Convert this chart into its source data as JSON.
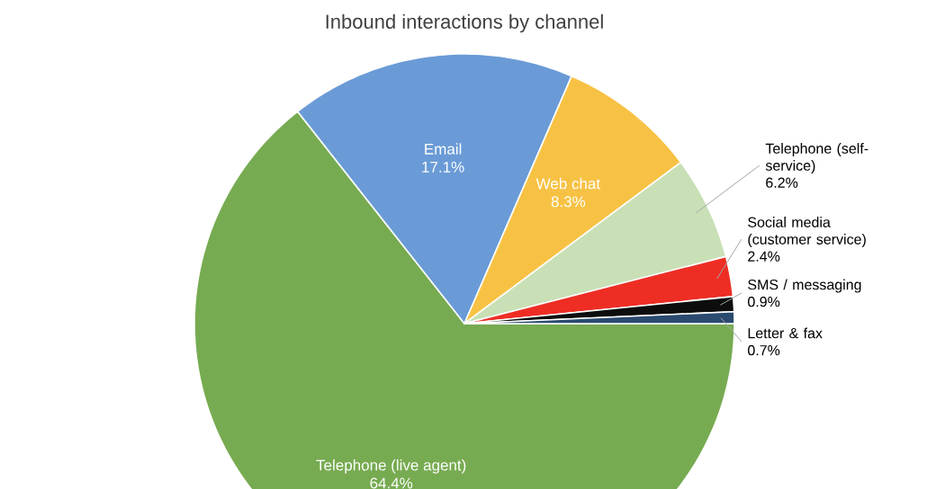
{
  "chart_data": {
    "type": "pie",
    "title": "Inbound interactions by channel",
    "categories": [
      "Telephone (live agent)",
      "Email",
      "Web chat",
      "Telephone (self-service)",
      "Social media (customer service)",
      "SMS / messaging",
      "Letter & fax"
    ],
    "values": [
      64.4,
      17.1,
      8.3,
      6.2,
      2.4,
      0.9,
      0.7
    ],
    "value_labels": [
      "64.4%",
      "17.1%",
      "8.3%",
      "6.2%",
      "2.4%",
      "0.9%",
      "0.7%"
    ],
    "colors": [
      "#77ab51",
      "#6a9bd6",
      "#f7c244",
      "#c9e0b6",
      "#ee2e24",
      "#0d0d0d",
      "#2a4a6f"
    ]
  }
}
